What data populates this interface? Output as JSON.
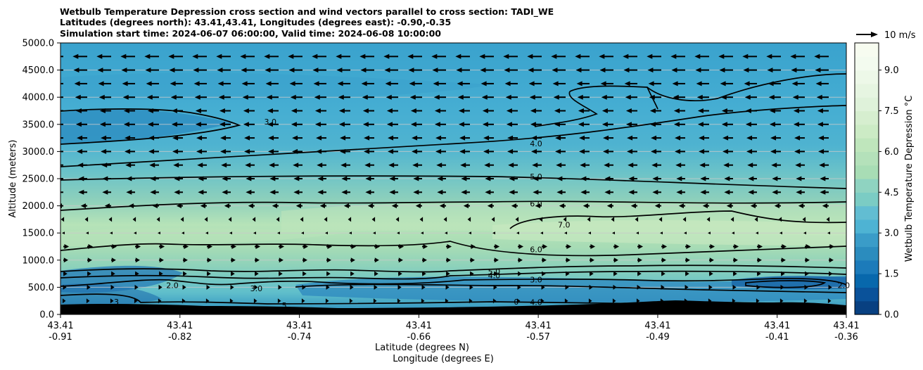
{
  "titles": [
    "Wetbulb Temperature Depression cross section and wind vectors parallel to cross section: TADI_WE",
    "Latitudes (degrees north): 43.41,43.41, Longitudes (degrees east): -0.90,-0.35",
    "Simulation start time: 2024-06-07 06:00:00, Valid time: 2024-06-08 10:00:00"
  ],
  "chart_data": {
    "type": "heatmap",
    "ylabel": "Altitude (meters)",
    "xlabel_line1": "Latitude (degrees N)",
    "xlabel_line2": "Longitude (degrees E)",
    "ylim": [
      0,
      5000
    ],
    "yticks": [
      "0.0",
      "500.0",
      "1000.0",
      "1500.0",
      "2000.0",
      "2500.0",
      "3000.0",
      "3500.0",
      "4000.0",
      "4500.0",
      "5000.0"
    ],
    "ytick_values": [
      0,
      500,
      1000,
      1500,
      2000,
      2500,
      3000,
      3500,
      4000,
      4500,
      5000
    ],
    "xticks": [
      {
        "lat": "43.41",
        "lon": "-0.91"
      },
      {
        "lat": "43.41",
        "lon": "-0.82"
      },
      {
        "lat": "43.41",
        "lon": "-0.74"
      },
      {
        "lat": "43.41",
        "lon": "-0.66"
      },
      {
        "lat": "43.41",
        "lon": "-0.57"
      },
      {
        "lat": "43.41",
        "lon": "-0.49"
      },
      {
        "lat": "43.41",
        "lon": "-0.41"
      },
      {
        "lat": "43.41",
        "lon": "-0.36"
      }
    ],
    "colorbar": {
      "label": "Wetbulb Temperature Depression °C",
      "ticks": [
        "0.0",
        "1.5",
        "3.0",
        "4.5",
        "6.0",
        "7.5",
        "9.0"
      ],
      "tick_values": [
        0,
        1.5,
        3,
        4.5,
        6,
        7.5,
        9
      ],
      "min": 0,
      "max": 10,
      "levels": 20,
      "colormap": "GnBu_r"
    },
    "quiver_key": {
      "label": "10 m/s",
      "speed": 10
    },
    "contour_labels": [
      {
        "text": "3.0",
        "x": 0.15,
        "y": 3550
      },
      {
        "text": "4.0",
        "x": 0.34,
        "y": 3150
      },
      {
        "text": "5.0",
        "x": 0.34,
        "y": 2540
      },
      {
        "text": "6.0",
        "x": 0.34,
        "y": 2040
      },
      {
        "text": "7.0",
        "x": 0.36,
        "y": 1650
      },
      {
        "text": "6.0",
        "x": 0.34,
        "y": 1200
      },
      {
        "text": "5.0",
        "x": 0.31,
        "y": 790
      },
      {
        "text": "4.0",
        "x": 0.31,
        "y": 720
      },
      {
        "text": "3.0",
        "x": 0.34,
        "y": 640
      },
      {
        "text": "4.0",
        "x": 0.34,
        "y": 225
      },
      {
        "text": "2.0",
        "x": 0.08,
        "y": 540
      },
      {
        "text": "3.0",
        "x": 0.14,
        "y": 480
      },
      {
        "text": "3",
        "x": 0.04,
        "y": 230
      },
      {
        "text": "5",
        "x": 0.16,
        "y": 170
      },
      {
        "text": "2.0",
        "x": 0.56,
        "y": 540
      },
      {
        "text": "0",
        "x": 0.58,
        "y": 230
      }
    ],
    "contour_levels": [
      2,
      3,
      4,
      5,
      6,
      7
    ],
    "wind_u_by_altitude": [
      {
        "altitude": 250,
        "u": 1.5
      },
      {
        "altitude": 500,
        "u": 2.0
      },
      {
        "altitude": 750,
        "u": 2.5
      },
      {
        "altitude": 1000,
        "u": 3.0
      },
      {
        "altitude": 1250,
        "u": 3.5
      },
      {
        "altitude": 1500,
        "u": 0.0
      },
      {
        "altitude": 1750,
        "u": -1.5
      },
      {
        "altitude": 2000,
        "u": -4.0
      },
      {
        "altitude": 2250,
        "u": -5.5
      },
      {
        "altitude": 2500,
        "u": -5.5
      },
      {
        "altitude": 2750,
        "u": -6.0
      },
      {
        "altitude": 3000,
        "u": -6.5
      },
      {
        "altitude": 3250,
        "u": -6.5
      },
      {
        "altitude": 3500,
        "u": -7.0
      },
      {
        "altitude": 3750,
        "u": -7.0
      },
      {
        "altitude": 4000,
        "u": -7.5
      },
      {
        "altitude": 4250,
        "u": -8.0
      },
      {
        "altitude": 4500,
        "u": -8.5
      },
      {
        "altitude": 4750,
        "u": -9.0
      }
    ]
  }
}
